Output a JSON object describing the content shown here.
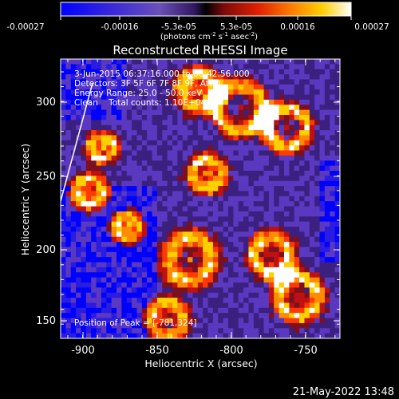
{
  "colorbar": {
    "ticks": [
      "-0.00027",
      "-0.00016",
      "-5.3e-05",
      "5.3e-05",
      "0.00016",
      "0.00027"
    ],
    "units_main": "(photons cm",
    "units_sup1": "-2",
    "units_mid1": " s",
    "units_sup2": "-1",
    "units_mid2": " asec",
    "units_sup3": "-2",
    "units_end": ")"
  },
  "title": "Reconstructed RHESSI Image",
  "info": {
    "line1": "3-Jun-2015 06:37:16.000 to 06:42:56.000",
    "line2": "Detectors: 3F 5F 6F 7F 8F 9F, Att 0",
    "line3": "Energy Range: 25.0 - 50.0 keV",
    "line4": "Clean    Total counts: 1.10E+04",
    "peak": "Position of Peak = [-781,324]"
  },
  "axes": {
    "xlabel": "Heliocentric X (arcsec)",
    "ylabel": "Heliocentric Y (arcsec)",
    "xticks": [
      "-900",
      "-850",
      "-800",
      "-750"
    ],
    "yticks": [
      "300",
      "250",
      "200",
      "150"
    ]
  },
  "timestamp": "21-May-2022 13:48",
  "colors": {
    "background": "#000000",
    "text": "#ffffff"
  },
  "colormap": [
    "#0000ff",
    "#2a1ce0",
    "#5a38c0",
    "#3c2080",
    "#7a1020",
    "#c01010",
    "#ff3a00",
    "#ff8c00",
    "#ffd000",
    "#ffffff"
  ]
}
